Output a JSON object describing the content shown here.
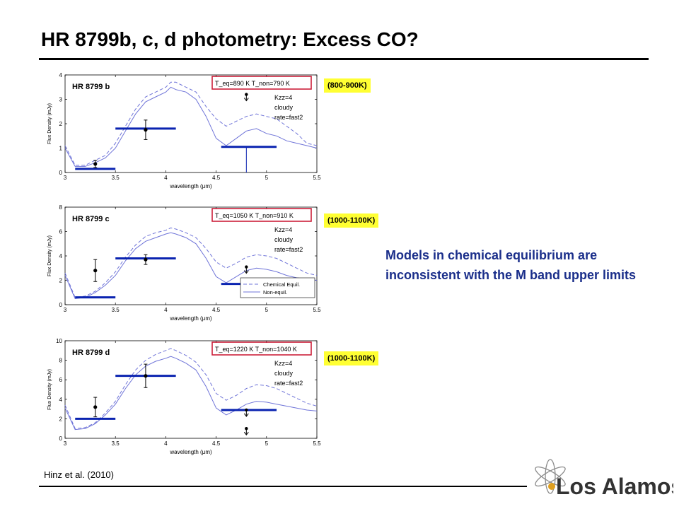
{
  "slide": {
    "title": "HR 8799b, c, d photometry: Excess CO?",
    "conclusion": "Models in chemical equilibrium are inconsistent with the M band upper limits",
    "citation": "Hinz et al. (2010)",
    "logo_text": "Los Alamos"
  },
  "colors": {
    "model_line": "#6f74d8",
    "phot_bar": "#0a23b0",
    "highlight_box": "#cc1f3a",
    "tag_bg": "#ffff33",
    "text_blue": "#1a2e8a"
  },
  "chart_data": [
    {
      "type": "line",
      "title": "HR 8799 b",
      "temperature_range": "(800-900K)",
      "xlabel": "wavelength (μm)",
      "ylabel": "Flux Density (mJy)",
      "xlim": [
        3,
        5.5
      ],
      "ylim": [
        0,
        4
      ],
      "xticks": [
        3,
        3.5,
        4,
        4.5,
        5,
        5.5
      ],
      "yticks": [
        0,
        1,
        2,
        3,
        4
      ],
      "annotations": [
        "T_eq=890 K  T_non=790 K",
        "Kzz=4",
        "cloudy",
        "rate=fast2"
      ],
      "legend": null,
      "series": [
        {
          "name": "Chemical Equil.",
          "style": "dashed",
          "x": [
            3.0,
            3.1,
            3.2,
            3.3,
            3.4,
            3.5,
            3.6,
            3.7,
            3.8,
            3.9,
            4.0,
            4.05,
            4.1,
            4.2,
            4.3,
            4.4,
            4.5,
            4.6,
            4.7,
            4.8,
            4.9,
            5.0,
            5.1,
            5.2,
            5.3,
            5.4,
            5.5
          ],
          "values": [
            1.1,
            0.3,
            0.3,
            0.5,
            0.7,
            1.2,
            1.9,
            2.6,
            3.1,
            3.3,
            3.5,
            3.7,
            3.7,
            3.5,
            3.3,
            2.7,
            2.2,
            1.9,
            2.1,
            2.3,
            2.4,
            2.3,
            2.2,
            1.9,
            1.6,
            1.2,
            1.1
          ]
        },
        {
          "name": "Non-equil.",
          "style": "solid",
          "x": [
            3.0,
            3.1,
            3.2,
            3.3,
            3.4,
            3.5,
            3.6,
            3.7,
            3.8,
            3.9,
            4.0,
            4.05,
            4.1,
            4.2,
            4.3,
            4.4,
            4.5,
            4.6,
            4.7,
            4.8,
            4.9,
            5.0,
            5.1,
            5.2,
            5.3,
            5.4,
            5.5
          ],
          "values": [
            1.0,
            0.25,
            0.25,
            0.4,
            0.6,
            1.0,
            1.7,
            2.4,
            2.9,
            3.1,
            3.3,
            3.5,
            3.4,
            3.3,
            3.0,
            2.3,
            1.4,
            1.1,
            1.4,
            1.7,
            1.8,
            1.6,
            1.5,
            1.3,
            1.2,
            1.1,
            1.0
          ]
        }
      ],
      "data_points": [
        {
          "x": 3.3,
          "y": 0.35,
          "yerr": 0.15
        },
        {
          "x": 3.8,
          "y": 1.75,
          "yerr": 0.4
        },
        {
          "x": 4.8,
          "y": 3.2,
          "upper_limit": true
        }
      ],
      "band_bars": [
        {
          "x0": 3.1,
          "x1": 3.5,
          "y": 0.15
        },
        {
          "x0": 3.5,
          "x1": 4.1,
          "y": 1.8
        },
        {
          "x0": 4.55,
          "x1": 5.1,
          "y": 1.05,
          "drop_to": 0
        }
      ]
    },
    {
      "type": "line",
      "title": "HR 8799 c",
      "temperature_range": "(1000-1100K)",
      "xlabel": "wavelength (μm)",
      "ylabel": "Flux Density (mJy)",
      "xlim": [
        3,
        5.5
      ],
      "ylim": [
        0,
        8
      ],
      "xticks": [
        3,
        3.5,
        4,
        4.5,
        5,
        5.5
      ],
      "yticks": [
        0,
        2,
        4,
        6,
        8
      ],
      "annotations": [
        "T_eq=1050 K  T_non=910 K",
        "Kzz=4",
        "cloudy",
        "rate=fast2"
      ],
      "legend": [
        "Chemical Equil.",
        "Non-equil."
      ],
      "series": [
        {
          "name": "Chemical Equil.",
          "style": "dashed",
          "x": [
            3.0,
            3.1,
            3.2,
            3.3,
            3.4,
            3.5,
            3.6,
            3.7,
            3.8,
            3.9,
            4.0,
            4.05,
            4.1,
            4.2,
            4.3,
            4.4,
            4.5,
            4.6,
            4.7,
            4.8,
            4.9,
            5.0,
            5.1,
            5.2,
            5.3,
            5.4,
            5.5
          ],
          "values": [
            2.6,
            0.6,
            0.7,
            1.1,
            1.8,
            2.7,
            3.9,
            4.9,
            5.6,
            5.9,
            6.1,
            6.3,
            6.2,
            5.9,
            5.5,
            4.6,
            3.5,
            3.0,
            3.4,
            3.9,
            4.1,
            4.0,
            3.8,
            3.4,
            3.0,
            2.6,
            2.4
          ]
        },
        {
          "name": "Non-equil.",
          "style": "solid",
          "x": [
            3.0,
            3.1,
            3.2,
            3.3,
            3.4,
            3.5,
            3.6,
            3.7,
            3.8,
            3.9,
            4.0,
            4.05,
            4.1,
            4.2,
            4.3,
            4.4,
            4.5,
            4.6,
            4.7,
            4.8,
            4.9,
            5.0,
            5.1,
            5.2,
            5.3,
            5.4,
            5.5
          ],
          "values": [
            2.4,
            0.5,
            0.6,
            1.0,
            1.6,
            2.4,
            3.6,
            4.6,
            5.2,
            5.5,
            5.8,
            5.9,
            5.8,
            5.5,
            5.0,
            3.8,
            2.3,
            1.8,
            2.3,
            2.8,
            3.0,
            2.9,
            2.7,
            2.4,
            2.2,
            2.1,
            2.0
          ]
        }
      ],
      "data_points": [
        {
          "x": 3.3,
          "y": 2.8,
          "yerr": 0.9
        },
        {
          "x": 3.8,
          "y": 3.7,
          "yerr": 0.4
        },
        {
          "x": 4.8,
          "y": 3.1,
          "upper_limit": true
        }
      ],
      "band_bars": [
        {
          "x0": 3.1,
          "x1": 3.5,
          "y": 0.6
        },
        {
          "x0": 3.5,
          "x1": 4.1,
          "y": 3.8
        },
        {
          "x0": 4.55,
          "x1": 5.1,
          "y": 1.7
        }
      ]
    },
    {
      "type": "line",
      "title": "HR 8799 d",
      "temperature_range": "(1000-1100K)",
      "xlabel": "wavelength (μm)",
      "ylabel": "Flux Density (mJy)",
      "xlim": [
        3,
        5.5
      ],
      "ylim": [
        0,
        10
      ],
      "xticks": [
        3,
        3.5,
        4,
        4.5,
        5,
        5.5
      ],
      "yticks": [
        0,
        2,
        4,
        6,
        8,
        10
      ],
      "annotations": [
        "T_eq=1220 K  T_non=1040 K",
        "Kzz=4",
        "cloudy",
        "rate=fast2"
      ],
      "legend": null,
      "series": [
        {
          "name": "Chemical Equil.",
          "style": "dashed",
          "x": [
            3.0,
            3.1,
            3.2,
            3.3,
            3.4,
            3.5,
            3.6,
            3.7,
            3.8,
            3.9,
            4.0,
            4.05,
            4.1,
            4.2,
            4.3,
            4.4,
            4.5,
            4.6,
            4.7,
            4.8,
            4.9,
            5.0,
            5.1,
            5.2,
            5.3,
            5.4,
            5.5
          ],
          "values": [
            3.4,
            1.0,
            1.1,
            1.6,
            2.6,
            3.8,
            5.5,
            7.0,
            8.0,
            8.6,
            9.0,
            9.2,
            9.0,
            8.5,
            7.8,
            6.5,
            4.6,
            3.9,
            4.4,
            5.1,
            5.5,
            5.4,
            5.1,
            4.6,
            4.1,
            3.6,
            3.3
          ]
        },
        {
          "name": "Non-equil.",
          "style": "solid",
          "x": [
            3.0,
            3.1,
            3.2,
            3.3,
            3.4,
            3.5,
            3.6,
            3.7,
            3.8,
            3.9,
            4.0,
            4.05,
            4.1,
            4.2,
            4.3,
            4.4,
            4.5,
            4.6,
            4.7,
            4.8,
            4.9,
            5.0,
            5.1,
            5.2,
            5.3,
            5.4,
            5.5
          ],
          "values": [
            3.1,
            0.9,
            1.0,
            1.5,
            2.4,
            3.5,
            5.1,
            6.5,
            7.4,
            7.9,
            8.2,
            8.4,
            8.2,
            7.7,
            7.0,
            5.3,
            3.1,
            2.4,
            2.9,
            3.5,
            3.8,
            3.7,
            3.5,
            3.3,
            3.1,
            2.9,
            2.8
          ]
        }
      ],
      "data_points": [
        {
          "x": 3.3,
          "y": 3.2,
          "yerr": 1.0
        },
        {
          "x": 3.8,
          "y": 6.4,
          "yerr": 1.2
        },
        {
          "x": 4.8,
          "y": 2.9,
          "upper_limit": true
        },
        {
          "x": 4.8,
          "y": 1.0,
          "upper_limit": true
        }
      ],
      "band_bars": [
        {
          "x0": 3.1,
          "x1": 3.5,
          "y": 2.0
        },
        {
          "x0": 3.5,
          "x1": 4.1,
          "y": 6.4
        },
        {
          "x0": 4.55,
          "x1": 5.1,
          "y": 2.9
        }
      ]
    }
  ]
}
